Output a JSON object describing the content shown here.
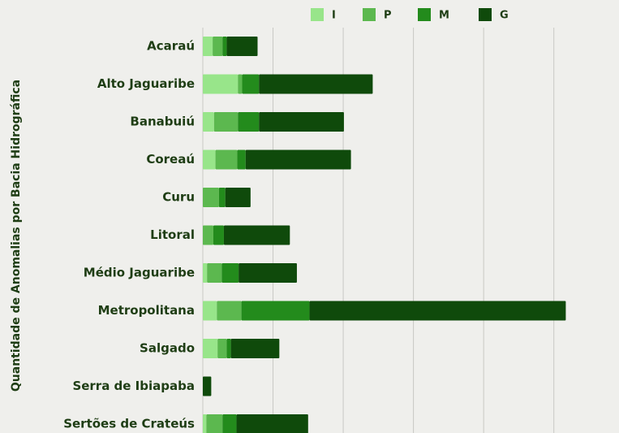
{
  "chart_data": {
    "type": "stacked-barh",
    "y_label": "Quantidade de Anomalias por Bacia Hidrográfica",
    "categories": [
      "Acaraú",
      "Alto Jaguaribe",
      "Banabuiú",
      "Coreaú",
      "Curu",
      "Litoral",
      "Médio Jaguaribe",
      "Metropolitana",
      "Salgado",
      "Serra de Ibiapaba",
      "Sertões de Crateús"
    ],
    "series": [
      {
        "name": "I",
        "color": "#98e58a",
        "values": [
          1.4,
          5.0,
          1.6,
          1.8,
          0,
          0,
          0.6,
          2.0,
          2.1,
          0,
          0.5
        ]
      },
      {
        "name": "P",
        "color": "#5cb84f",
        "values": [
          1.4,
          0.6,
          3.4,
          3.1,
          2.3,
          1.5,
          2.1,
          3.5,
          1.3,
          0,
          2.3
        ]
      },
      {
        "name": "M",
        "color": "#238b1c",
        "values": [
          0.6,
          2.4,
          3.0,
          1.2,
          0.9,
          1.5,
          2.4,
          9.7,
          0.6,
          0,
          2.0
        ]
      },
      {
        "name": "G",
        "color": "#0f4a0b",
        "values": [
          4.4,
          16.2,
          12.1,
          15.0,
          3.6,
          9.4,
          8.3,
          36.5,
          6.9,
          1.2,
          10.2
        ]
      }
    ],
    "xlim": [
      0,
      52
    ],
    "xticks": [
      0,
      10,
      20,
      30,
      40,
      50
    ],
    "grid": true,
    "legend": "top"
  }
}
